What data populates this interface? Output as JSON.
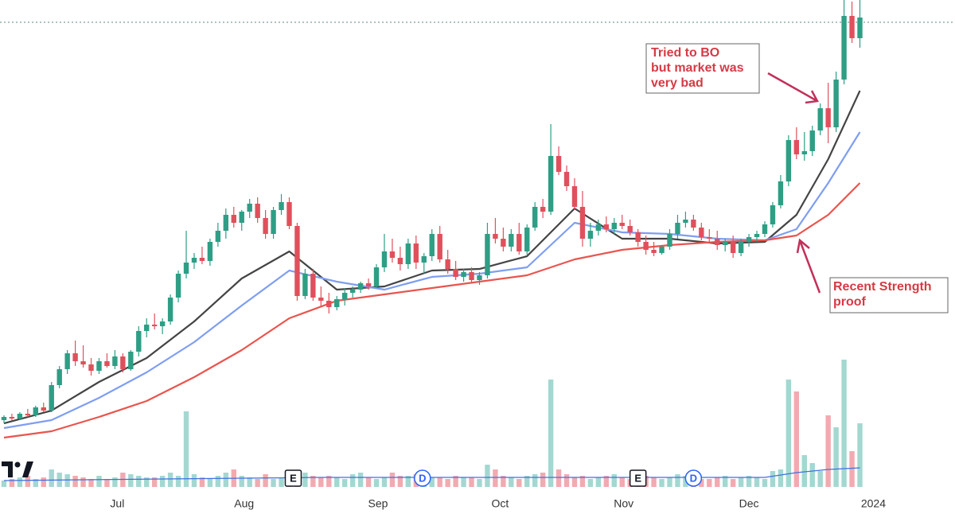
{
  "chart_data": {
    "type": "candlestick",
    "up_color": "#2e9e85",
    "down_color": "#e0505c",
    "volume_up_color": "#a3d8d1",
    "volume_down_color": "#f2aab0",
    "xlim": [
      -0.5,
      120
    ],
    "xticks": [
      {
        "value": 14.3,
        "label": "Jul"
      },
      {
        "value": 30.3,
        "label": "Aug"
      },
      {
        "value": 47.2,
        "label": "Sep"
      },
      {
        "value": 62.6,
        "label": "Oct"
      },
      {
        "value": 78.2,
        "label": "Nov"
      },
      {
        "value": 94,
        "label": "Dec"
      },
      {
        "value": 109.7,
        "label": "2024"
      }
    ],
    "ylim": [
      0,
      600
    ],
    "volume_ylim": [
      0,
      200
    ],
    "ohlc": [
      [
        72,
        78,
        68,
        76
      ],
      [
        76,
        80,
        72,
        74
      ],
      [
        74,
        82,
        72,
        80
      ],
      [
        80,
        86,
        76,
        78
      ],
      [
        78,
        90,
        76,
        88
      ],
      [
        88,
        94,
        82,
        84
      ],
      [
        84,
        120,
        82,
        116
      ],
      [
        116,
        140,
        112,
        136
      ],
      [
        136,
        160,
        130,
        156
      ],
      [
        156,
        172,
        140,
        146
      ],
      [
        146,
        166,
        138,
        142
      ],
      [
        142,
        150,
        128,
        134
      ],
      [
        134,
        150,
        130,
        146
      ],
      [
        146,
        156,
        138,
        140
      ],
      [
        140,
        160,
        136,
        152
      ],
      [
        152,
        156,
        132,
        136
      ],
      [
        136,
        160,
        134,
        158
      ],
      [
        158,
        190,
        152,
        184
      ],
      [
        184,
        200,
        176,
        192
      ],
      [
        192,
        206,
        186,
        190
      ],
      [
        190,
        200,
        180,
        196
      ],
      [
        196,
        230,
        192,
        226
      ],
      [
        226,
        260,
        220,
        256
      ],
      [
        256,
        310,
        250,
        270
      ],
      [
        270,
        282,
        262,
        276
      ],
      [
        276,
        290,
        268,
        272
      ],
      [
        272,
        300,
        266,
        296
      ],
      [
        296,
        320,
        290,
        310
      ],
      [
        310,
        338,
        300,
        330
      ],
      [
        330,
        340,
        314,
        320
      ],
      [
        320,
        336,
        310,
        334
      ],
      [
        334,
        350,
        326,
        344
      ],
      [
        344,
        352,
        320,
        326
      ],
      [
        326,
        336,
        300,
        306
      ],
      [
        306,
        340,
        300,
        336
      ],
      [
        336,
        356,
        330,
        346
      ],
      [
        346,
        352,
        312,
        316
      ],
      [
        316,
        320,
        222,
        228
      ],
      [
        228,
        262,
        224,
        256
      ],
      [
        256,
        262,
        222,
        226
      ],
      [
        226,
        240,
        214,
        222
      ],
      [
        222,
        232,
        206,
        214
      ],
      [
        214,
        228,
        210,
        224
      ],
      [
        224,
        238,
        216,
        232
      ],
      [
        232,
        240,
        226,
        236
      ],
      [
        236,
        246,
        232,
        244
      ],
      [
        244,
        250,
        236,
        240
      ],
      [
        240,
        268,
        238,
        264
      ],
      [
        264,
        306,
        258,
        284
      ],
      [
        284,
        300,
        270,
        276
      ],
      [
        276,
        290,
        260,
        268
      ],
      [
        268,
        300,
        262,
        294
      ],
      [
        294,
        304,
        262,
        270
      ],
      [
        270,
        282,
        256,
        278
      ],
      [
        278,
        312,
        272,
        306
      ],
      [
        306,
        316,
        270,
        274
      ],
      [
        274,
        286,
        256,
        262
      ],
      [
        262,
        272,
        248,
        252
      ],
      [
        252,
        262,
        246,
        258
      ],
      [
        258,
        264,
        244,
        248
      ],
      [
        248,
        258,
        242,
        254
      ],
      [
        254,
        320,
        250,
        306
      ],
      [
        306,
        326,
        294,
        300
      ],
      [
        300,
        314,
        284,
        290
      ],
      [
        290,
        312,
        284,
        306
      ],
      [
        306,
        320,
        280,
        284
      ],
      [
        284,
        318,
        280,
        314
      ],
      [
        314,
        346,
        310,
        340
      ],
      [
        340,
        350,
        326,
        334
      ],
      [
        334,
        444,
        330,
        404
      ],
      [
        404,
        416,
        380,
        384
      ],
      [
        384,
        392,
        360,
        366
      ],
      [
        366,
        376,
        336,
        340
      ],
      [
        340,
        360,
        290,
        300
      ],
      [
        300,
        320,
        290,
        310
      ],
      [
        310,
        324,
        304,
        318
      ],
      [
        318,
        328,
        308,
        312
      ],
      [
        312,
        326,
        306,
        320
      ],
      [
        320,
        330,
        312,
        316
      ],
      [
        316,
        324,
        304,
        308
      ],
      [
        308,
        312,
        290,
        296
      ],
      [
        296,
        304,
        280,
        286
      ],
      [
        286,
        296,
        278,
        282
      ],
      [
        282,
        292,
        280,
        290
      ],
      [
        290,
        312,
        286,
        306
      ],
      [
        306,
        330,
        300,
        320
      ],
      [
        320,
        334,
        314,
        324
      ],
      [
        324,
        330,
        310,
        314
      ],
      [
        314,
        320,
        298,
        302
      ],
      [
        302,
        312,
        294,
        300
      ],
      [
        300,
        310,
        286,
        292
      ],
      [
        292,
        300,
        284,
        296
      ],
      [
        296,
        304,
        276,
        282
      ],
      [
        282,
        300,
        278,
        296
      ],
      [
        296,
        306,
        290,
        302
      ],
      [
        302,
        310,
        296,
        306
      ],
      [
        306,
        322,
        302,
        318
      ],
      [
        318,
        346,
        314,
        342
      ],
      [
        342,
        380,
        338,
        372
      ],
      [
        372,
        430,
        366,
        424
      ],
      [
        424,
        440,
        400,
        406
      ],
      [
        406,
        434,
        398,
        410
      ],
      [
        410,
        442,
        404,
        436
      ],
      [
        436,
        470,
        430,
        464
      ],
      [
        464,
        496,
        420,
        440
      ],
      [
        440,
        510,
        434,
        500
      ],
      [
        500,
        600,
        494,
        580
      ],
      [
        580,
        598,
        546,
        552
      ],
      [
        552,
        600,
        540,
        578
      ]
    ],
    "volume": [
      8,
      10,
      12,
      14,
      10,
      12,
      22,
      18,
      16,
      14,
      12,
      10,
      14,
      10,
      12,
      18,
      16,
      14,
      12,
      12,
      14,
      18,
      14,
      95,
      16,
      12,
      10,
      14,
      18,
      22,
      14,
      12,
      10,
      16,
      10,
      12,
      12,
      16,
      18,
      14,
      12,
      14,
      12,
      10,
      16,
      18,
      12,
      10,
      12,
      18,
      14,
      14,
      16,
      10,
      12,
      12,
      10,
      14,
      12,
      12,
      10,
      28,
      22,
      14,
      12,
      10,
      14,
      16,
      18,
      135,
      22,
      16,
      12,
      14,
      10,
      12,
      14,
      16,
      12,
      10,
      12,
      14,
      12,
      10,
      12,
      16,
      14,
      12,
      10,
      10,
      12,
      14,
      10,
      12,
      14,
      12,
      10,
      20,
      22,
      135,
      120,
      40,
      30,
      20,
      90,
      75,
      160,
      45,
      80
    ],
    "lines": [
      {
        "color": "#444444",
        "x": [
          0,
          6,
          12,
          18,
          24,
          30,
          36,
          42,
          48,
          54,
          60,
          66,
          72,
          78,
          84,
          90,
          96,
          100,
          104,
          108
        ],
        "values": [
          68,
          84,
          120,
          150,
          196,
          250,
          284,
          236,
          240,
          260,
          262,
          278,
          338,
          300,
          300,
          294,
          296,
          330,
          400,
          486
        ]
      },
      {
        "color": "#7f9ef0",
        "x": [
          0,
          6,
          12,
          18,
          24,
          30,
          36,
          42,
          48,
          54,
          60,
          66,
          72,
          78,
          84,
          90,
          96,
          100,
          104,
          108
        ],
        "values": [
          62,
          72,
          100,
          132,
          170,
          216,
          260,
          246,
          236,
          252,
          256,
          264,
          320,
          308,
          306,
          300,
          298,
          312,
          370,
          434
        ]
      },
      {
        "color": "#e8554e",
        "x": [
          0,
          6,
          12,
          18,
          24,
          30,
          36,
          42,
          48,
          54,
          60,
          66,
          72,
          78,
          84,
          90,
          96,
          100,
          104,
          108
        ],
        "values": [
          50,
          58,
          76,
          96,
          126,
          160,
          200,
          222,
          230,
          238,
          246,
          254,
          274,
          286,
          292,
          296,
          298,
          304,
          330,
          370
        ]
      }
    ],
    "volume_line": {
      "color": "#3f6fe0",
      "x": [
        0,
        20,
        40,
        60,
        80,
        96,
        100,
        104,
        108
      ],
      "values": [
        8,
        10,
        12,
        12,
        12,
        12,
        18,
        22,
        24
      ]
    },
    "events": [
      {
        "label": "E",
        "x": 36.5
      },
      {
        "label": "D",
        "x": 52.8
      },
      {
        "label": "E",
        "x": 80
      },
      {
        "label": "D",
        "x": 87
      }
    ],
    "annotations": [
      {
        "lines": [
          "Tried to BO",
          "but market was",
          "very bad"
        ]
      },
      {
        "lines": [
          "Recent Strength",
          "proof"
        ]
      }
    ]
  }
}
